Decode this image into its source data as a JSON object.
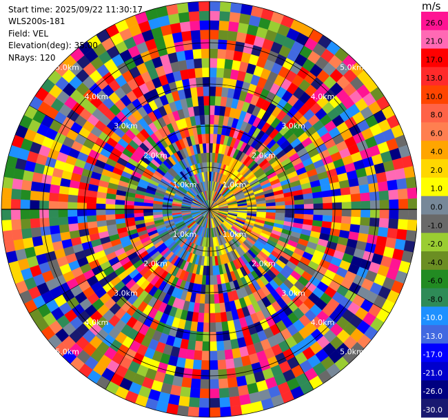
{
  "header": {
    "start_time": "Start time: 2025/09/22 11:30:17",
    "instrument": "WLS200s-181",
    "field": "Field: VEL",
    "elevation": "Elevation(deg): 35.00",
    "nrays": "NRays: 120"
  },
  "chart_data": {
    "type": "heatmap",
    "projection": "polar-ppi",
    "ring_labels": [
      "1.0km",
      "2.0km",
      "3.0km",
      "4.0km",
      "5.0km"
    ],
    "colorbar": {
      "unit": "m/s",
      "ticks": [
        "26.0",
        "21.0",
        "17.0",
        "13.0",
        "10.0",
        "8.0",
        "6.0",
        "4.0",
        "2.0",
        "1.0",
        "0.0",
        "-1.0",
        "-2.0",
        "-4.0",
        "-6.0",
        "-8.0",
        "-10.0",
        "-13.0",
        "-17.0",
        "-21.0",
        "-26.0",
        "-30.0"
      ],
      "colors": [
        "#ff1493",
        "#ff69b4",
        "#ff0000",
        "#ff2a2a",
        "#ff4500",
        "#ff6347",
        "#ff7f50",
        "#ffa500",
        "#ffd700",
        "#ffff00",
        "#778899",
        "#696969",
        "#9acd32",
        "#6b8e23",
        "#228b22",
        "#2e8b57",
        "#1e90ff",
        "#4169e1",
        "#0000ff",
        "#0000cd",
        "#000080",
        "#191970"
      ]
    }
  }
}
